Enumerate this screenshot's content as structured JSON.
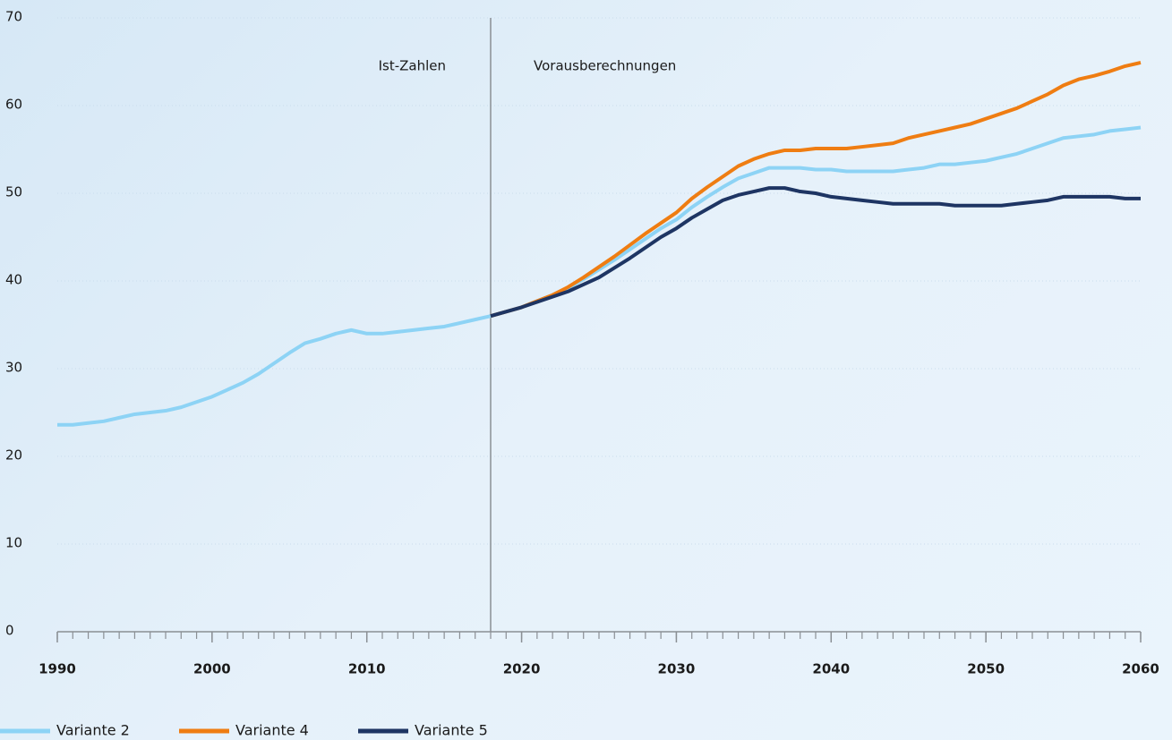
{
  "chart_data": {
    "type": "line",
    "annotations": [
      "Ist-Zahlen",
      "Vorausberechnungen"
    ],
    "split_x": 2018,
    "x": [
      1990,
      1991,
      1992,
      1993,
      1994,
      1995,
      1996,
      1997,
      1998,
      1999,
      2000,
      2001,
      2002,
      2003,
      2004,
      2005,
      2006,
      2007,
      2008,
      2009,
      2010,
      2011,
      2012,
      2013,
      2014,
      2015,
      2016,
      2017,
      2018,
      2019,
      2020,
      2021,
      2022,
      2023,
      2024,
      2025,
      2026,
      2027,
      2028,
      2029,
      2030,
      2031,
      2032,
      2033,
      2034,
      2035,
      2036,
      2037,
      2038,
      2039,
      2040,
      2041,
      2042,
      2043,
      2044,
      2045,
      2046,
      2047,
      2048,
      2049,
      2050,
      2051,
      2052,
      2053,
      2054,
      2055,
      2056,
      2057,
      2058,
      2059,
      2060
    ],
    "series": [
      {
        "name": "Variante 2",
        "color": "#8dd3f5",
        "values": [
          23.6,
          23.6,
          23.8,
          24.0,
          24.4,
          24.8,
          25.0,
          25.2,
          25.6,
          26.2,
          26.8,
          27.6,
          28.4,
          29.4,
          30.6,
          31.8,
          32.9,
          33.4,
          34.0,
          34.4,
          34.0,
          34.0,
          34.2,
          34.4,
          34.6,
          34.8,
          35.2,
          35.6,
          36.0,
          36.5,
          37.0,
          37.7,
          38.4,
          39.2,
          40.2,
          41.3,
          42.4,
          43.6,
          44.8,
          46.0,
          47.0,
          48.4,
          49.6,
          50.7,
          51.7,
          52.3,
          52.9,
          52.9,
          52.9,
          52.7,
          52.7,
          52.5,
          52.5,
          52.5,
          52.5,
          52.7,
          52.9,
          53.3,
          53.3,
          53.5,
          53.7,
          54.1,
          54.5,
          55.1,
          55.7,
          56.3,
          56.5,
          56.7,
          57.1,
          57.3,
          57.5
        ]
      },
      {
        "name": "Variante 4",
        "color": "#ef7d12",
        "values": [
          null,
          null,
          null,
          null,
          null,
          null,
          null,
          null,
          null,
          null,
          null,
          null,
          null,
          null,
          null,
          null,
          null,
          null,
          null,
          null,
          null,
          null,
          null,
          null,
          null,
          null,
          null,
          null,
          36.0,
          36.5,
          37.0,
          37.7,
          38.4,
          39.3,
          40.4,
          41.6,
          42.8,
          44.1,
          45.4,
          46.6,
          47.8,
          49.4,
          50.7,
          51.9,
          53.1,
          53.9,
          54.5,
          54.9,
          54.9,
          55.1,
          55.1,
          55.1,
          55.3,
          55.5,
          55.7,
          56.3,
          56.7,
          57.1,
          57.5,
          57.9,
          58.5,
          59.1,
          59.7,
          60.5,
          61.3,
          62.3,
          63.0,
          63.4,
          63.9,
          64.5,
          64.9
        ]
      },
      {
        "name": "Variante 5",
        "color": "#1e3563",
        "values": [
          null,
          null,
          null,
          null,
          null,
          null,
          null,
          null,
          null,
          null,
          null,
          null,
          null,
          null,
          null,
          null,
          null,
          null,
          null,
          null,
          null,
          null,
          null,
          null,
          null,
          null,
          null,
          null,
          36.0,
          36.5,
          37.0,
          37.6,
          38.2,
          38.8,
          39.6,
          40.4,
          41.5,
          42.6,
          43.8,
          45.0,
          46.0,
          47.2,
          48.2,
          49.2,
          49.8,
          50.2,
          50.6,
          50.6,
          50.2,
          50.0,
          49.6,
          49.4,
          49.2,
          49.0,
          48.8,
          48.8,
          48.8,
          48.8,
          48.6,
          48.6,
          48.6,
          48.6,
          48.8,
          49.0,
          49.2,
          49.6,
          49.6,
          49.6,
          49.6,
          49.4,
          49.4
        ]
      }
    ],
    "xlim": [
      1990,
      2060
    ],
    "xticks": [
      1990,
      2000,
      2010,
      2020,
      2030,
      2040,
      2050,
      2060
    ],
    "ylim": [
      0,
      70
    ],
    "yticks": [
      0,
      10,
      20,
      30,
      40,
      50,
      60,
      70
    ],
    "grid": true
  }
}
